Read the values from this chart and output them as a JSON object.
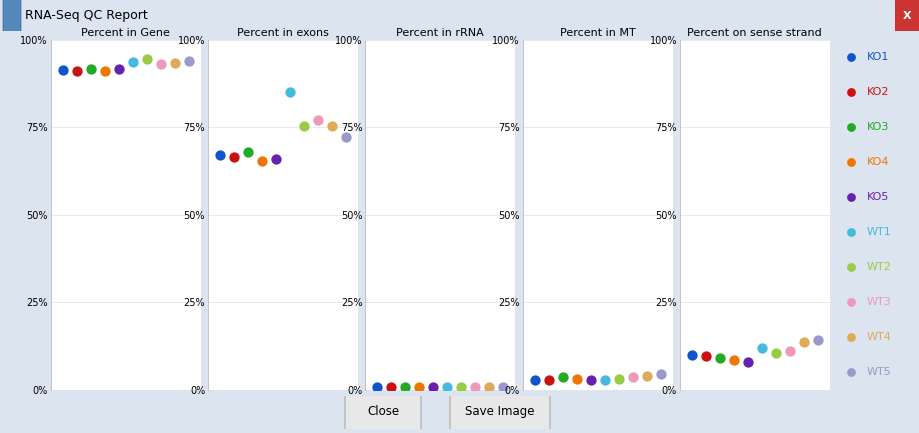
{
  "title": "RNA-Seq QC Report",
  "panels": [
    "Percent in Gene",
    "Percent in exons",
    "Percent in rRNA",
    "Percent in MT",
    "Percent on sense strand"
  ],
  "samples": [
    "KO1",
    "KO2",
    "KO3",
    "KO4",
    "KO5",
    "WT1",
    "WT2",
    "WT3",
    "WT4",
    "WT5"
  ],
  "colors": [
    "#1155cc",
    "#cc1111",
    "#22aa22",
    "#ee7700",
    "#6622aa",
    "#44bbdd",
    "#99cc44",
    "#ee99bb",
    "#ddaa55",
    "#9999cc"
  ],
  "panel_data": {
    "Percent in Gene": [
      0.913,
      0.912,
      0.918,
      0.912,
      0.916,
      0.936,
      0.944,
      0.93,
      0.933,
      0.94
    ],
    "Percent in exons": [
      0.67,
      0.664,
      0.678,
      0.654,
      0.658,
      0.852,
      0.755,
      0.77,
      0.755,
      0.722
    ],
    "Percent in rRNA": [
      0.008,
      0.008,
      0.008,
      0.008,
      0.008,
      0.008,
      0.008,
      0.008,
      0.008,
      0.008
    ],
    "Percent in MT": [
      0.028,
      0.028,
      0.035,
      0.03,
      0.027,
      0.028,
      0.032,
      0.037,
      0.038,
      0.046
    ],
    "Percent on sense strand": [
      0.098,
      0.096,
      0.09,
      0.086,
      0.08,
      0.118,
      0.106,
      0.112,
      0.136,
      0.142
    ]
  },
  "ylim": [
    0,
    1.0
  ],
  "yticks": [
    0,
    0.25,
    0.5,
    0.75,
    1.0
  ],
  "yticklabels": [
    "0%",
    "25%",
    "50%",
    "75%",
    "100%"
  ],
  "bg_color": "#dce4f0",
  "panel_bg": "#ffffff",
  "titlebar_color": "#c8d4e4",
  "dot_size": 55,
  "legend_dot_size": 40,
  "panel_title_fontsize": 8,
  "tick_fontsize": 7,
  "legend_fontsize": 8
}
